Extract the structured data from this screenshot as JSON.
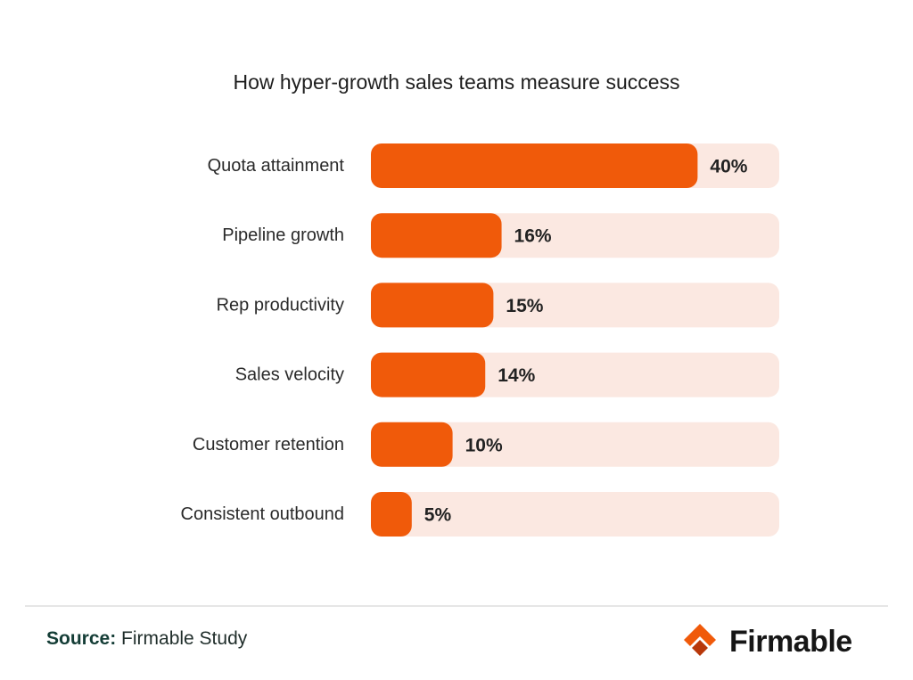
{
  "chart_data": {
    "type": "bar",
    "orientation": "horizontal",
    "title": "How hyper-growth sales teams measure success",
    "categories": [
      "Quota attainment",
      "Pipeline growth",
      "Rep productivity",
      "Sales velocity",
      "Customer retention",
      "Consistent outbound"
    ],
    "values": [
      40,
      16,
      15,
      14,
      10,
      5
    ],
    "value_labels": [
      "40%",
      "16%",
      "15%",
      "14%",
      "10%",
      "5%"
    ],
    "xlim": [
      0,
      50
    ],
    "unit": "%",
    "grid": false,
    "legend": "none",
    "colors": {
      "bar": "#f05a0a",
      "track": "#fbe8e1"
    }
  },
  "footer": {
    "source_label": "Source:",
    "source_text": "Firmable Study"
  },
  "brand": {
    "name": "Firmable",
    "logo_icon": "firmable-logo-icon",
    "colors": {
      "logo_top": "#f05a0a",
      "logo_bottom": "#b8380a"
    }
  }
}
